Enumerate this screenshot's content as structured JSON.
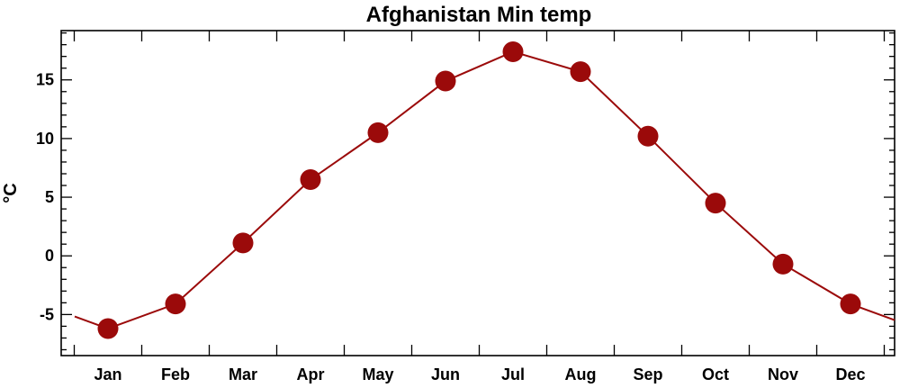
{
  "chart_data": {
    "type": "line",
    "title": "Afghanistan Min temp",
    "xlabel": "",
    "ylabel": "°C",
    "categories": [
      "Jan",
      "Feb",
      "Mar",
      "Apr",
      "May",
      "Jun",
      "Jul",
      "Aug",
      "Sep",
      "Oct",
      "Nov",
      "Dec"
    ],
    "series": [
      {
        "values": [
          -6.2,
          -4.1,
          1.1,
          6.5,
          10.5,
          14.9,
          17.4,
          15.7,
          10.2,
          4.5,
          -0.7,
          -4.1
        ],
        "color": "#9b0a0a",
        "marker": "filled-circle"
      }
    ],
    "ylim": [
      -8.5,
      19.2
    ],
    "yticks": [
      -5,
      0,
      5,
      10,
      15
    ],
    "grid": false,
    "legend": "none"
  }
}
